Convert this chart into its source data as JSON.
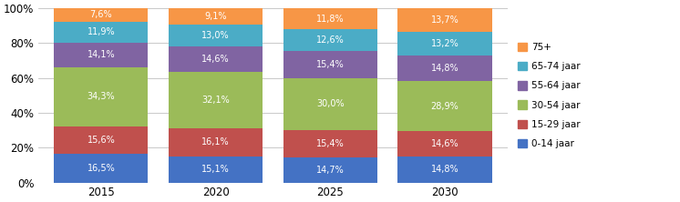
{
  "categories": [
    "2015",
    "2020",
    "2025",
    "2030"
  ],
  "series": [
    {
      "label": "0-14 jaar",
      "values": [
        16.5,
        15.1,
        14.7,
        14.8
      ],
      "color": "#4472C4"
    },
    {
      "label": "15-29 jaar",
      "values": [
        15.6,
        16.1,
        15.4,
        14.6
      ],
      "color": "#C0504D"
    },
    {
      "label": "30-54 jaar",
      "values": [
        34.3,
        32.1,
        30.0,
        28.9
      ],
      "color": "#9BBB59"
    },
    {
      "label": "55-64 jaar",
      "values": [
        14.1,
        14.6,
        15.4,
        14.8
      ],
      "color": "#8064A2"
    },
    {
      "label": "65-74 jaar",
      "values": [
        11.9,
        13.0,
        12.6,
        13.2
      ],
      "color": "#4BACC6"
    },
    {
      "label": "75+",
      "values": [
        7.6,
        9.1,
        11.8,
        13.7
      ],
      "color": "#F79646"
    }
  ],
  "ylim": [
    0,
    100
  ],
  "yticks": [
    0,
    20,
    40,
    60,
    80,
    100
  ],
  "ytick_labels": [
    "0%",
    "20%",
    "40%",
    "60%",
    "80%",
    "100%"
  ],
  "bar_width": 0.82,
  "text_color": "#FFFFFF",
  "text_fontsize": 7.0,
  "legend_fontsize": 7.5,
  "figsize": [
    7.46,
    2.22
  ],
  "dpi": 100,
  "background_color": "#FFFFFF",
  "grid_color": "#C0C0C0"
}
